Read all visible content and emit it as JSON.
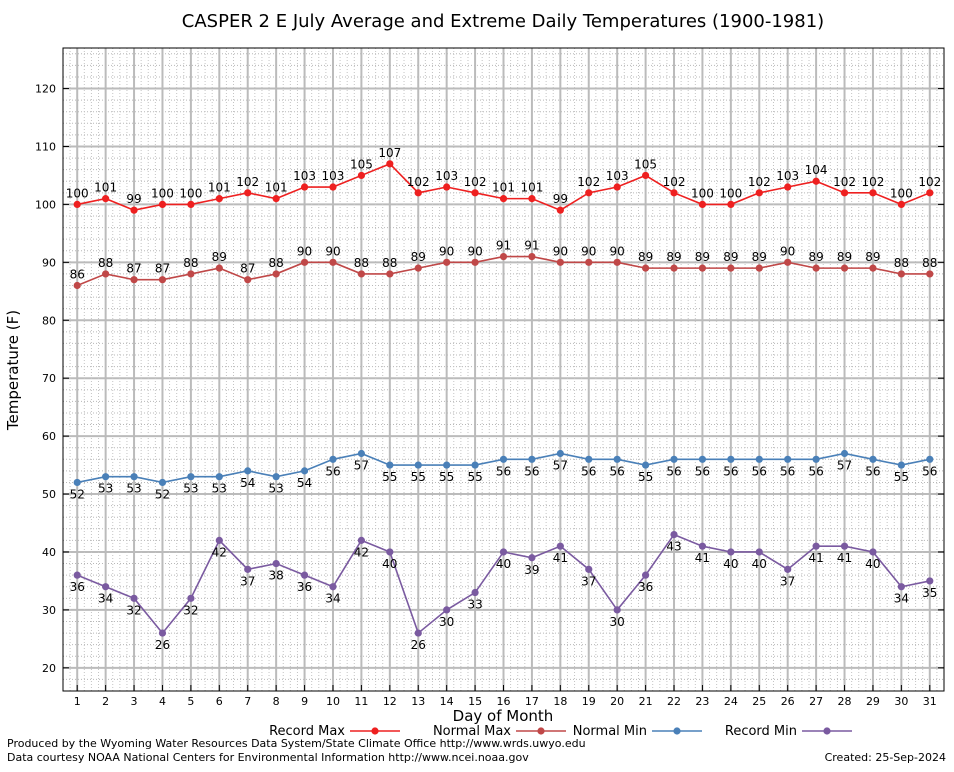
{
  "chart_data": {
    "type": "line",
    "title": "CASPER 2 E July Average and Extreme Daily Temperatures (1900-1981)",
    "xlabel": "Day of Month",
    "ylabel": "Temperature (F)",
    "x": [
      1,
      2,
      3,
      4,
      5,
      6,
      7,
      8,
      9,
      10,
      11,
      12,
      13,
      14,
      15,
      16,
      17,
      18,
      19,
      20,
      21,
      22,
      23,
      24,
      25,
      26,
      27,
      28,
      29,
      30,
      31
    ],
    "xlim": [
      0.5,
      31.5
    ],
    "ylim": [
      16,
      127
    ],
    "yticks": [
      20,
      30,
      40,
      50,
      60,
      70,
      80,
      90,
      100,
      110,
      120
    ],
    "grid": true,
    "legend_position": "bottom",
    "series": [
      {
        "name": "Record Max",
        "color": "#ee2020",
        "label_position": "above",
        "values": [
          100,
          101,
          99,
          100,
          100,
          101,
          102,
          101,
          103,
          103,
          105,
          107,
          102,
          103,
          102,
          101,
          101,
          99,
          102,
          103,
          105,
          102,
          100,
          100,
          102,
          103,
          104,
          102,
          102,
          100,
          102
        ]
      },
      {
        "name": "Normal Max",
        "color": "#c04848",
        "label_position": "above",
        "values": [
          86,
          88,
          87,
          87,
          88,
          89,
          87,
          88,
          90,
          90,
          88,
          88,
          89,
          90,
          90,
          91,
          91,
          90,
          90,
          90,
          89,
          89,
          89,
          89,
          89,
          90,
          89,
          89,
          89,
          88,
          88
        ]
      },
      {
        "name": "Normal Min",
        "color": "#4a80b8",
        "label_position": "below",
        "values": [
          52,
          53,
          53,
          52,
          53,
          53,
          54,
          53,
          54,
          56,
          57,
          55,
          55,
          55,
          55,
          56,
          56,
          57,
          56,
          56,
          55,
          56,
          56,
          56,
          56,
          56,
          56,
          57,
          56,
          55,
          56
        ]
      },
      {
        "name": "Record Min",
        "color": "#7a5aa0",
        "label_position": "below",
        "values": [
          36,
          34,
          32,
          26,
          32,
          42,
          37,
          38,
          36,
          34,
          42,
          40,
          26,
          30,
          33,
          40,
          39,
          41,
          37,
          30,
          36,
          43,
          41,
          40,
          40,
          37,
          41,
          41,
          40,
          34,
          35
        ]
      }
    ]
  },
  "footer": {
    "produced_by": "Produced by the Wyoming Water Resources Data System/State Climate Office http://www.wrds.uwyo.edu",
    "courtesy": "Data courtesy NOAA National Centers for Environmental Information http://www.ncei.noaa.gov",
    "created": "Created:  25-Sep-2024"
  }
}
